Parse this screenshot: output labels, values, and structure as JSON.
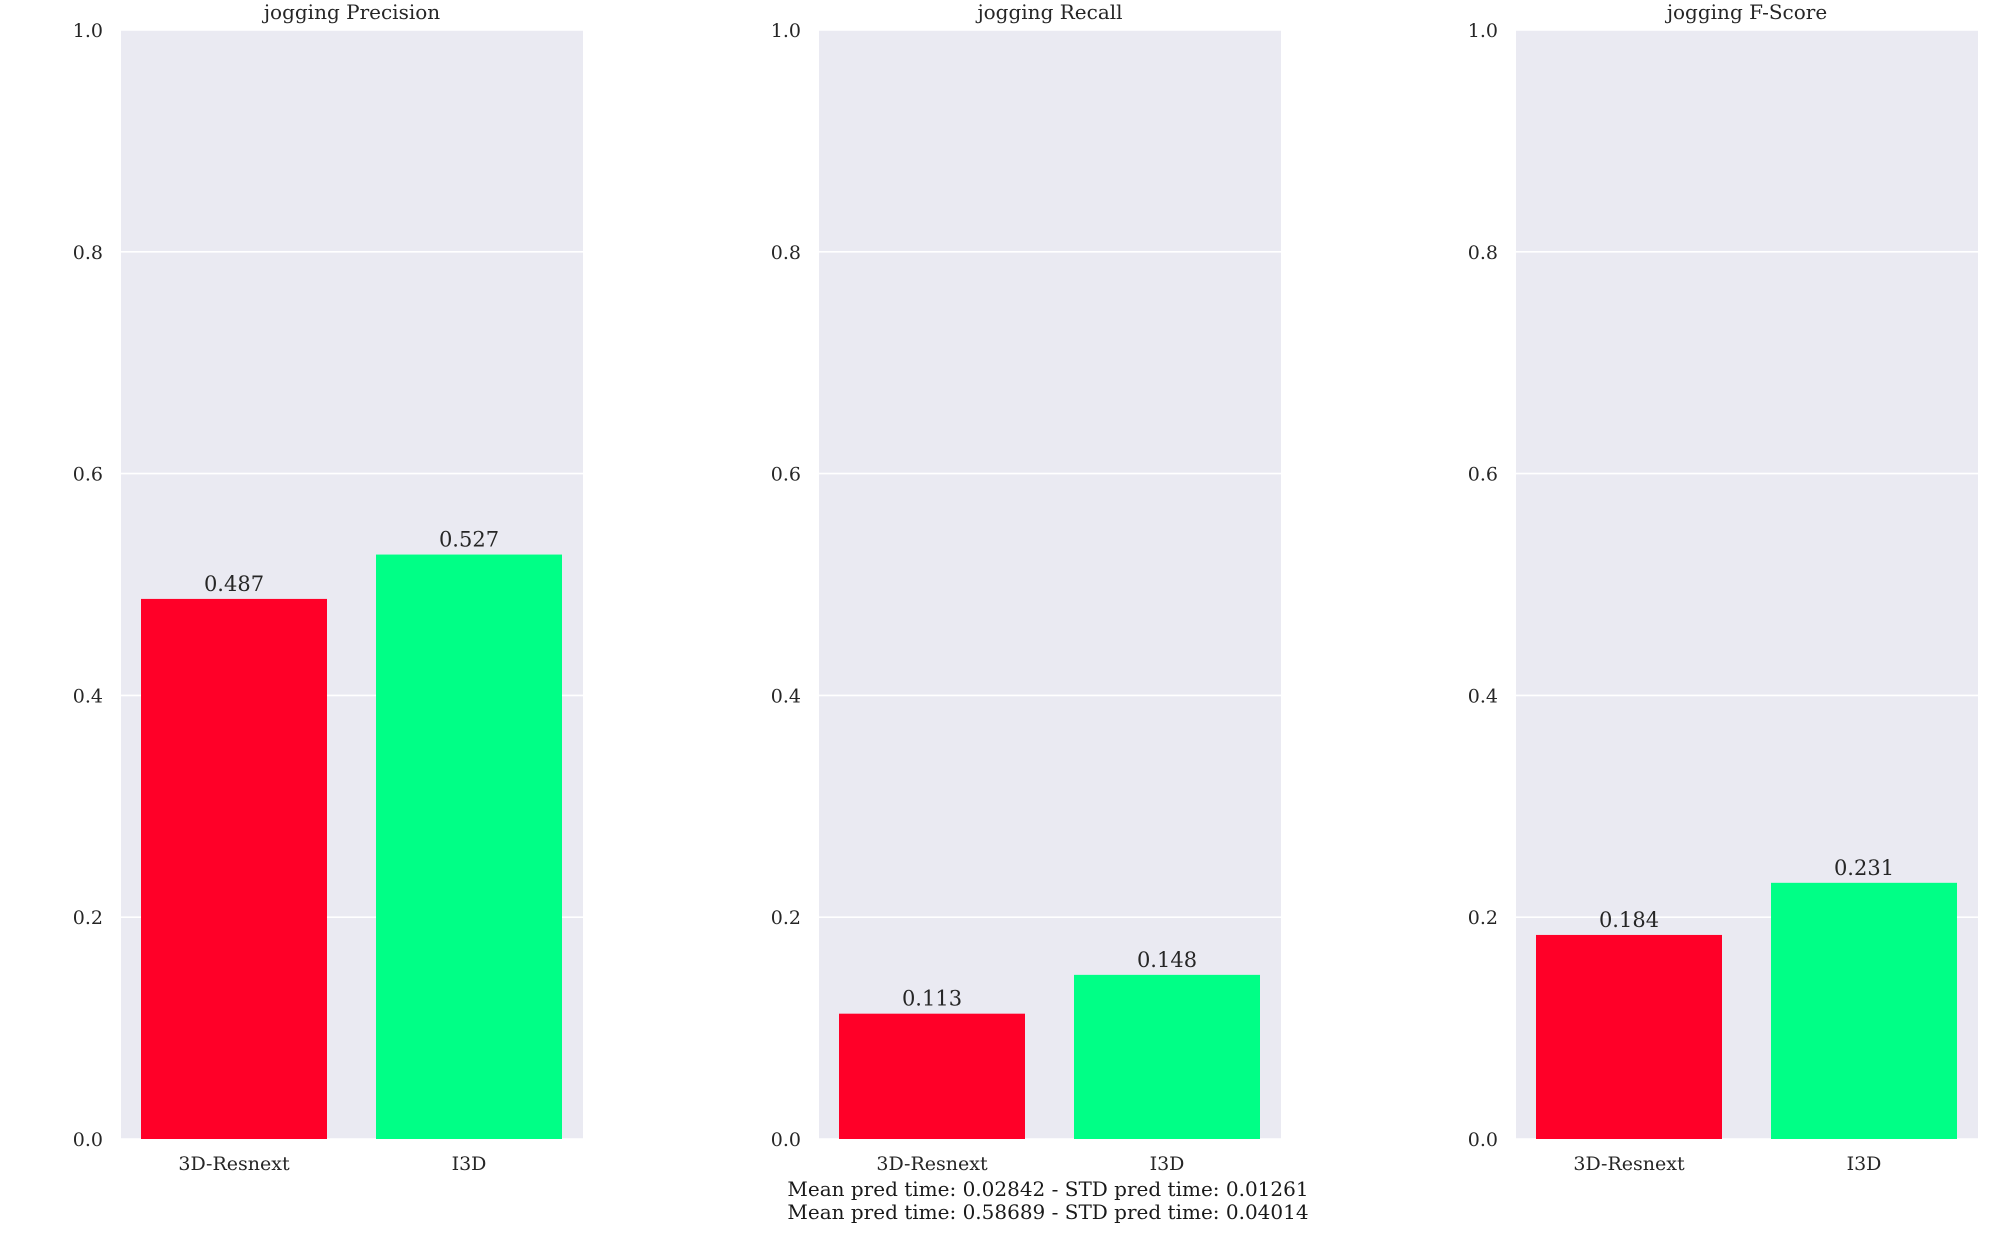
{
  "chart_data": [
    {
      "type": "bar",
      "title": "jogging Precision",
      "categories": [
        "3D-Resnext",
        "I3D"
      ],
      "values": [
        0.487,
        0.527
      ],
      "value_labels": [
        "0.487",
        "0.527"
      ],
      "bar_colors": [
        "#ff0028",
        "#00ff86"
      ],
      "ylim": [
        0,
        1.0
      ],
      "yticks": [
        "0.0",
        "0.2",
        "0.4",
        "0.6",
        "0.8",
        "1.0"
      ],
      "xlabel": "",
      "ylabel": "",
      "grid": true
    },
    {
      "type": "bar",
      "title": "jogging Recall",
      "categories": [
        "3D-Resnext",
        "I3D"
      ],
      "values": [
        0.113,
        0.148
      ],
      "value_labels": [
        "0.113",
        "0.148"
      ],
      "bar_colors": [
        "#ff0028",
        "#00ff86"
      ],
      "ylim": [
        0,
        1.0
      ],
      "yticks": [
        "0.0",
        "0.2",
        "0.4",
        "0.6",
        "0.8",
        "1.0"
      ],
      "xlabel": "",
      "ylabel": "",
      "grid": true
    },
    {
      "type": "bar",
      "title": "jogging F-Score",
      "categories": [
        "3D-Resnext",
        "I3D"
      ],
      "values": [
        0.184,
        0.231
      ],
      "value_labels": [
        "0.184",
        "0.231"
      ],
      "bar_colors": [
        "#ff0028",
        "#00ff86"
      ],
      "ylim": [
        0,
        1.0
      ],
      "yticks": [
        "0.0",
        "0.2",
        "0.4",
        "0.6",
        "0.8",
        "1.0"
      ],
      "xlabel": "",
      "ylabel": "",
      "grid": true
    }
  ],
  "footer": {
    "line1": "Mean pred time: 0.02842 - STD pred time: 0.01261",
    "line2": "Mean pred time: 0.58689 - STD pred time: 0.04014"
  },
  "colors": {
    "plot_background": "#eaeaf2",
    "page_background": "#ffffff"
  }
}
